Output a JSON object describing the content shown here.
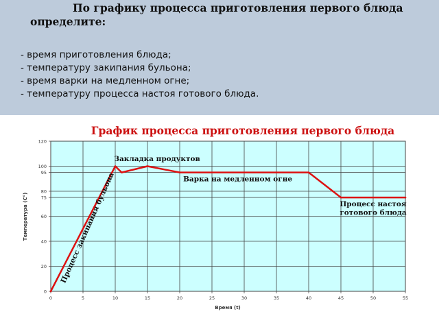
{
  "task": {
    "heading": "По графику процесса приготовления первого блюда определите:",
    "questions": [
      "- время приготовления блюда;",
      "- температуру закипания бульона;",
      "- время варки на медленном огне;",
      "- температуру процесса настоя готового блюда."
    ]
  },
  "colors": {
    "panel": "#bdcbdb",
    "plot_bg": "#ccffff",
    "line": "#dd1111",
    "title": "#cc1111",
    "grid": "#444444"
  },
  "chart_data": {
    "type": "line",
    "title": "График процесса приготовления первого блюда",
    "xlabel": "Время (t)",
    "ylabel": "Температура (С°)",
    "xlim": [
      0,
      55
    ],
    "ylim": [
      0,
      120
    ],
    "x_ticks": [
      0,
      5,
      10,
      15,
      20,
      25,
      30,
      35,
      40,
      45,
      50,
      55
    ],
    "y_ticks": [
      0,
      20,
      40,
      60,
      75,
      80,
      95,
      100,
      120
    ],
    "grid": true,
    "x": [
      0,
      10,
      11,
      15,
      20,
      40,
      45,
      55
    ],
    "y": [
      0,
      100,
      95,
      100,
      95,
      95,
      75,
      75
    ],
    "annotations": [
      {
        "text": "Закладка продуктов",
        "x": 16.5,
        "y": 104
      },
      {
        "text": "Процесс закипания бульона",
        "x": 6,
        "y": 50
      },
      {
        "text": "Варка на медленном огне",
        "x": 29,
        "y": 88
      },
      {
        "text": "Процесс настоя",
        "x": 50,
        "y": 68
      },
      {
        "text": "готового блюда",
        "x": 50,
        "y": 61
      }
    ]
  }
}
